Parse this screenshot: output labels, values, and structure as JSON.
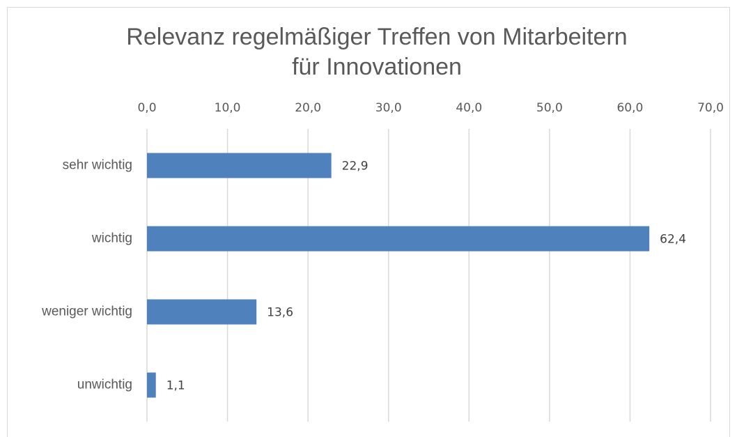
{
  "chart_data": {
    "type": "bar",
    "orientation": "horizontal",
    "title": [
      "Relevanz regelmäßiger Treffen von Mitarbeitern",
      "für Innovationen"
    ],
    "categories": [
      "sehr wichtig",
      "wichtig",
      "weniger wichtig",
      "unwichtig"
    ],
    "values": [
      22.9,
      62.4,
      13.6,
      1.1
    ],
    "value_labels": [
      "22,9",
      "62,4",
      "13,6",
      "1,1"
    ],
    "color": "#4f81bd",
    "xlim": [
      0,
      70
    ],
    "xticks": [
      {
        "value": 0,
        "label": "0,0"
      },
      {
        "value": 10,
        "label": "10,0"
      },
      {
        "value": 20,
        "label": "20,0"
      },
      {
        "value": 30,
        "label": "30,0"
      },
      {
        "value": 40,
        "label": "40,0"
      },
      {
        "value": 50,
        "label": "50,0"
      },
      {
        "value": 60,
        "label": "60,0"
      },
      {
        "value": 70,
        "label": "70,0"
      }
    ],
    "grid": true
  }
}
